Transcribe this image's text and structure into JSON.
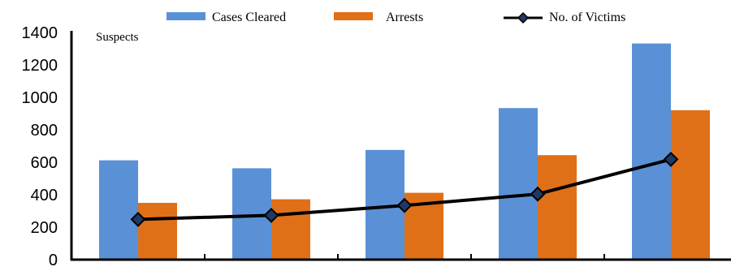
{
  "chart_data": {
    "type": "bar",
    "categories": [
      "",
      "",
      "",
      "",
      ""
    ],
    "series": [
      {
        "name": "Cases Cleared",
        "type": "bar",
        "color": "#5a91d6",
        "values": [
          612,
          563,
          676,
          934,
          1332
        ]
      },
      {
        "name": "Arrests",
        "type": "bar",
        "color": "#e07018",
        "values": [
          350,
          372,
          412,
          644,
          921
        ]
      },
      {
        "name": "No. of Victims",
        "type": "line",
        "color": "#000000",
        "marker": "diamond",
        "marker_color": "#1f3864",
        "values": [
          248,
          273,
          334,
          404,
          618
        ]
      }
    ],
    "ylabel": "Suspects",
    "ylim": [
      0,
      1400
    ],
    "yticks": [
      0,
      200,
      400,
      600,
      800,
      1000,
      1200,
      1400
    ],
    "grid": false,
    "legend_position": "top"
  }
}
